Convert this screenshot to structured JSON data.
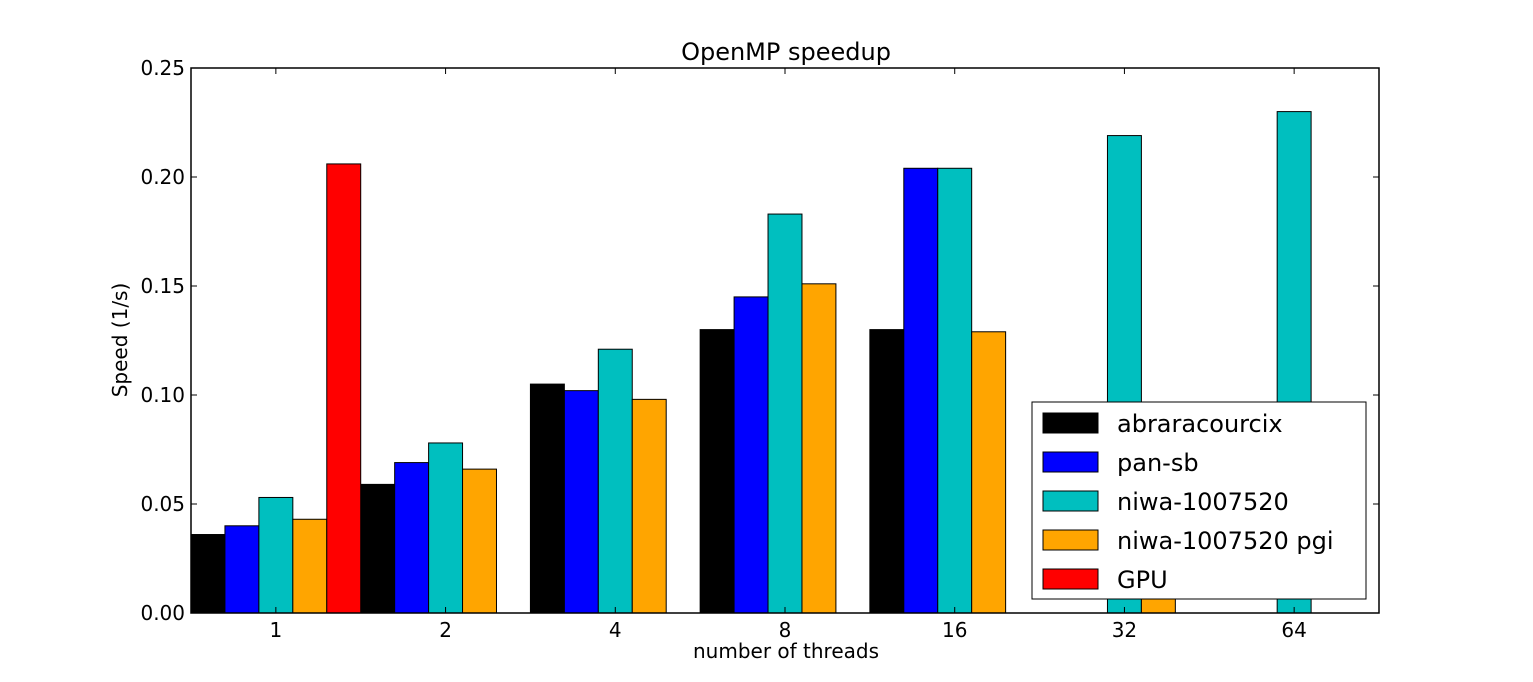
{
  "chart_data": {
    "type": "bar",
    "title": "OpenMP speedup",
    "xlabel": "number of threads",
    "ylabel": "Speed (1/s)",
    "categories": [
      "1",
      "2",
      "4",
      "8",
      "16",
      "32",
      "64"
    ],
    "ylim": [
      0,
      0.25
    ],
    "yticks": [
      "0.00",
      "0.05",
      "0.10",
      "0.15",
      "0.20",
      "0.25"
    ],
    "grid": false,
    "legend_position": "lower-right",
    "series": [
      {
        "name": "abraracourcix",
        "color": "#000000",
        "values": [
          0.036,
          0.059,
          0.105,
          0.13,
          0.13,
          null,
          null
        ]
      },
      {
        "name": "pan-sb",
        "color": "#0000ff",
        "values": [
          0.04,
          0.069,
          0.102,
          0.145,
          0.204,
          null,
          null
        ]
      },
      {
        "name": "niwa-1007520",
        "color": "#00bfbf",
        "values": [
          0.053,
          0.078,
          0.121,
          0.183,
          0.204,
          0.219,
          0.23
        ]
      },
      {
        "name": "niwa-1007520 pgi",
        "color": "#ffa500",
        "values": [
          0.043,
          0.066,
          0.098,
          0.151,
          0.129,
          0.058,
          null
        ]
      },
      {
        "name": "GPU",
        "color": "#ff0000",
        "values": [
          0.206,
          null,
          null,
          null,
          null,
          null,
          null
        ]
      }
    ]
  }
}
